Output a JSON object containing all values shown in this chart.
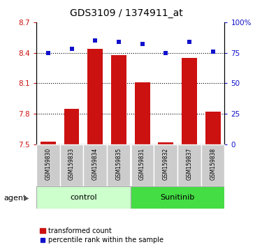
{
  "title": "GDS3109 / 1374911_at",
  "samples": [
    "GSM159830",
    "GSM159833",
    "GSM159834",
    "GSM159835",
    "GSM159831",
    "GSM159832",
    "GSM159837",
    "GSM159838"
  ],
  "bar_values": [
    7.53,
    7.85,
    8.44,
    8.38,
    8.11,
    7.52,
    8.35,
    7.82
  ],
  "scatter_values": [
    75,
    78,
    85,
    84,
    82,
    75,
    84,
    76
  ],
  "bar_bottom": 7.5,
  "ylim": [
    7.5,
    8.7
  ],
  "y2lim": [
    0,
    100
  ],
  "yticks": [
    7.5,
    7.8,
    8.1,
    8.4,
    8.7
  ],
  "y2ticks": [
    0,
    25,
    50,
    75,
    100
  ],
  "bar_color": "#cc1111",
  "scatter_color": "#1111cc",
  "tick_color_left": "#cc1111",
  "tick_color_right": "#1111cc",
  "grid_color": "black",
  "control_color": "#ccffcc",
  "sunitinib_color": "#44dd44",
  "sample_box_color": "#cccccc",
  "legend_bar_label": "transformed count",
  "legend_scatter_label": "percentile rank within the sample",
  "bar_width": 0.65
}
